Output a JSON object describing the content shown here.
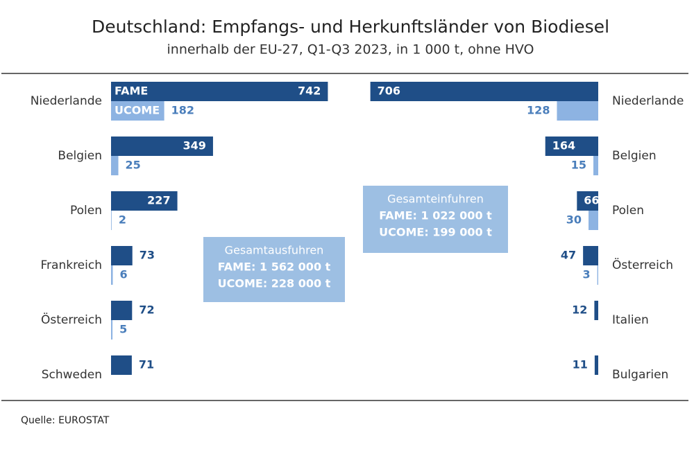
{
  "title": "Deutschland: Empfangs- und Herkunftsländer von Biodiesel",
  "subtitle": "innerhalb der EU-27, Q1-Q3 2023, in 1 000 t, ohne HVO",
  "source": "Quelle:  EUROSTAT",
  "chart_data": [
    {
      "type": "bar",
      "orientation": "horizontal",
      "categories": [
        "Niederlande",
        "Belgien",
        "Polen",
        "Frankreich",
        "Österreich",
        "Schweden"
      ],
      "series": [
        {
          "name": "FAME",
          "color": "#1f4e87",
          "values": [
            742,
            349,
            227,
            73,
            72,
            71
          ]
        },
        {
          "name": "UCOME",
          "color": "#8db3e2",
          "values": [
            182,
            25,
            2,
            6,
            5,
            null
          ]
        }
      ],
      "xlim": [
        0,
        950
      ],
      "annotation": {
        "title": "Gesamtausfuhren",
        "lines": [
          "FAME: 1 562 000 t",
          "UCOME: 228 000 t"
        ]
      }
    },
    {
      "type": "bar",
      "orientation": "horizontal",
      "reversed": true,
      "categories": [
        "Niederlande",
        "Belgien",
        "Polen",
        "Österreich",
        "Italien",
        "Bulgarien"
      ],
      "series": [
        {
          "color": "#1f4e87",
          "values": [
            706,
            164,
            66,
            47,
            12,
            11
          ]
        },
        {
          "color": "#8db3e2",
          "values": [
            128,
            15,
            30,
            3,
            null,
            null
          ]
        }
      ],
      "xlim": [
        0,
        860
      ],
      "annotation": {
        "title": "Gesamteinfuhren",
        "lines": [
          "FAME: 1 022 000 t",
          "UCOME: 199 000 t"
        ]
      }
    }
  ]
}
